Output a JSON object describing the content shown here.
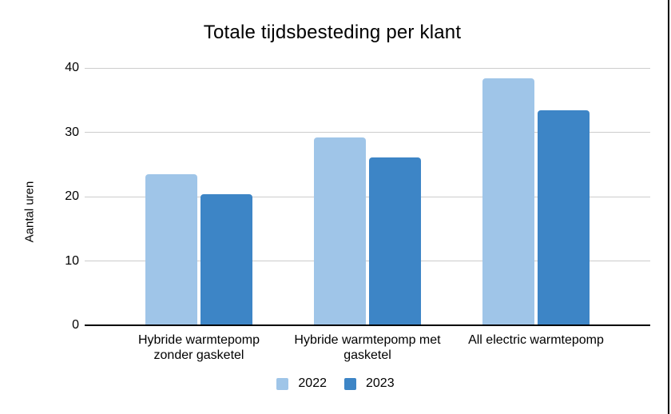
{
  "chart_data": {
    "type": "bar",
    "title": "Totale tijdsbesteding per klant",
    "ylabel": "Aantal uren",
    "xlabel": "",
    "categories": [
      "Hybride warmtepomp zonder gasketel",
      "Hybride warmtepomp met gasketel",
      "All electric warmtepomp"
    ],
    "series": [
      {
        "name": "2022",
        "color": "#9fc5e8",
        "values": [
          23.5,
          29.2,
          38.4
        ]
      },
      {
        "name": "2023",
        "color": "#3d85c6",
        "values": [
          20.4,
          26.1,
          33.4
        ]
      }
    ],
    "ylim": [
      0,
      40
    ],
    "yticks": [
      0,
      10,
      20,
      30,
      40
    ],
    "grid": true,
    "legend_position": "bottom",
    "colors": {
      "gridline": "#cccccc",
      "axis": "#000000",
      "text": "#000000",
      "background": "#ffffff",
      "screen_edge_line": "#000000"
    }
  }
}
